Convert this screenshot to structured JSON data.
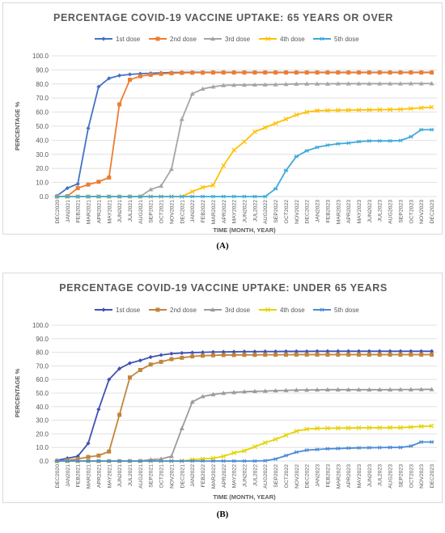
{
  "chart_data": [
    {
      "type": "line",
      "title": "PERCENTAGE COVID-19 VACCINE UPTAKE: 65 YEARS OR OVER",
      "xlabel": "TIME (MONTH, YEAR)",
      "ylabel": "PERCENTAGE %",
      "ylim": [
        0,
        100
      ],
      "y_ticks": [
        "0.0",
        "10.0",
        "20.0",
        "30.0",
        "40.0",
        "50.0",
        "60.0",
        "70.0",
        "80.0",
        "90.0",
        "100.0"
      ],
      "legend_position": "top",
      "grid": true,
      "categories": [
        "DEC2020",
        "JAN2021",
        "FEB2021",
        "MAR2021",
        "APR2021",
        "MAY2021",
        "JUN2021",
        "JUL2021",
        "AUG2021",
        "SEP2021",
        "OCT2021",
        "NOV2021",
        "DEC2021",
        "JAN2022",
        "FEB2022",
        "MAR2022",
        "APR2022",
        "MAY2022",
        "JUN2022",
        "JUL2022",
        "AUG2022",
        "SEP2022",
        "OCT2022",
        "NOV2022",
        "DEC2022",
        "JAN2023",
        "FEB2023",
        "MAR2023",
        "APR2023",
        "MAY2023",
        "JUN2023",
        "JUL2023",
        "AUG2023",
        "SEP2023",
        "OCT2023",
        "NOV2023",
        "DEC2023"
      ],
      "series": [
        {
          "name": "1st dose",
          "color": "#4472c4",
          "marker": "diamond",
          "values": [
            0.5,
            6,
            9,
            48.5,
            78,
            84,
            86,
            86.8,
            87.3,
            87.6,
            87.9,
            88.1,
            88.2,
            88.3,
            88.3,
            88.3,
            88.3,
            88.3,
            88.3,
            88.3,
            88.3,
            88.3,
            88.3,
            88.3,
            88.3,
            88.3,
            88.3,
            88.3,
            88.3,
            88.3,
            88.3,
            88.3,
            88.3,
            88.3,
            88.3,
            88.3,
            88.3
          ]
        },
        {
          "name": "2nd dose",
          "color": "#ed7d31",
          "marker": "square",
          "values": [
            0,
            0.3,
            6,
            8.5,
            10.5,
            13.5,
            65.5,
            83,
            85.5,
            86.5,
            87.2,
            87.6,
            87.9,
            88,
            88,
            88.1,
            88.1,
            88.1,
            88.1,
            88.1,
            88.1,
            88.1,
            88.1,
            88.1,
            88.1,
            88.1,
            88.1,
            88.1,
            88.1,
            88.1,
            88.1,
            88.1,
            88.1,
            88.1,
            88.1,
            88.1,
            88.1
          ]
        },
        {
          "name": "3rd dose",
          "color": "#a5a5a5",
          "marker": "triangle",
          "values": [
            0,
            0,
            0,
            0,
            0,
            0,
            0,
            0,
            0,
            5,
            7.5,
            19.5,
            55,
            73,
            76.5,
            78,
            79,
            79.2,
            79.3,
            79.4,
            79.5,
            79.6,
            79.8,
            80,
            80.1,
            80.1,
            80.1,
            80.2,
            80.2,
            80.2,
            80.2,
            80.2,
            80.2,
            80.2,
            80.3,
            80.3,
            80.3
          ]
        },
        {
          "name": "4th dose",
          "color": "#ffc000",
          "marker": "x",
          "values": [
            0,
            0,
            0,
            0,
            0,
            0,
            0,
            0,
            0,
            0,
            0,
            0,
            0,
            3.5,
            6.5,
            8,
            22,
            33,
            39,
            46,
            49,
            52,
            55,
            58,
            60,
            61,
            61.2,
            61.3,
            61.4,
            61.5,
            61.6,
            61.7,
            61.8,
            62,
            62.5,
            63,
            63.5
          ]
        },
        {
          "name": "5th dose",
          "color": "#3fa9d9",
          "marker": "star",
          "values": [
            0,
            0,
            0,
            0,
            0,
            0,
            0,
            0,
            0,
            0,
            0,
            0,
            0,
            0,
            0,
            0,
            0,
            0,
            0,
            0,
            0,
            5.5,
            18.5,
            28.5,
            32.5,
            35,
            36.5,
            37.5,
            38,
            39,
            39.5,
            39.5,
            39.5,
            39.8,
            42.5,
            47.5,
            47.5
          ]
        }
      ]
    },
    {
      "type": "line",
      "title": "PERCENTAGE COVID-19 VACCINE UPTAKE: UNDER 65 YEARS",
      "xlabel": "TIME (MONTH, YEAR)",
      "ylabel": "PERCENTAGE %",
      "ylim": [
        0,
        100
      ],
      "y_ticks": [
        "0.0",
        "10.0",
        "20.0",
        "30.0",
        "40.0",
        "50.0",
        "60.0",
        "70.0",
        "80.0",
        "90.0",
        "100.0"
      ],
      "legend_position": "top",
      "grid": true,
      "categories": [
        "DEC2020",
        "JAN2021",
        "FEB2021",
        "MAR2021",
        "APR2021",
        "MAY2021",
        "JUN2021",
        "JUL2021",
        "AUG2021",
        "SEP2021",
        "OCT2021",
        "NOV2021",
        "DEC2021",
        "JAN2022",
        "FEB2022",
        "MAR2022",
        "APR2022",
        "MAY2022",
        "JUN2022",
        "JUL2022",
        "AUG2022",
        "SEP2022",
        "OCT2022",
        "NOV2022",
        "DEC2022",
        "JAN2023",
        "FEB2023",
        "MAR2023",
        "APR2023",
        "MAY2023",
        "JUN2023",
        "JUL2023",
        "AUG2023",
        "SEP2023",
        "OCT2023",
        "NOV2023",
        "DEC2023"
      ],
      "series": [
        {
          "name": "1st dose",
          "color": "#4052b5",
          "marker": "diamond",
          "values": [
            0.5,
            2,
            3.5,
            13,
            38,
            60,
            68,
            72,
            74,
            76.5,
            78,
            79,
            79.5,
            79.8,
            80,
            80.2,
            80.3,
            80.4,
            80.5,
            80.5,
            80.6,
            80.6,
            80.7,
            80.7,
            80.7,
            80.8,
            80.8,
            80.8,
            80.8,
            80.8,
            80.8,
            80.8,
            80.8,
            80.8,
            80.8,
            80.8,
            80.8
          ]
        },
        {
          "name": "2nd dose",
          "color": "#c0863a",
          "marker": "square",
          "values": [
            0,
            0.5,
            1.5,
            3,
            4,
            7,
            34,
            61.5,
            67,
            71,
            73,
            75,
            76,
            77,
            77.5,
            77.8,
            78,
            78,
            78.1,
            78.1,
            78.2,
            78.2,
            78.2,
            78.3,
            78.3,
            78.3,
            78.3,
            78.3,
            78.3,
            78.3,
            78.3,
            78.3,
            78.3,
            78.3,
            78.3,
            78.3,
            78.3
          ]
        },
        {
          "name": "3rd dose",
          "color": "#9b9b9b",
          "marker": "triangle",
          "values": [
            0,
            0,
            0,
            0,
            0,
            0,
            0,
            0,
            0,
            1,
            1.5,
            3.5,
            24,
            43.5,
            47.5,
            49,
            50,
            50.5,
            51,
            51.3,
            51.5,
            51.8,
            52,
            52.2,
            52.3,
            52.4,
            52.5,
            52.5,
            52.5,
            52.5,
            52.5,
            52.5,
            52.5,
            52.6,
            52.6,
            52.7,
            52.7
          ]
        },
        {
          "name": "4th dose",
          "color": "#e6d200",
          "marker": "x",
          "values": [
            0,
            0,
            0,
            0,
            0,
            0,
            0,
            0,
            0,
            0,
            0,
            0,
            0,
            1,
            1.5,
            2,
            3.5,
            6,
            7.5,
            10.5,
            13.5,
            16,
            19,
            22,
            23.5,
            24,
            24.1,
            24.2,
            24.3,
            24.4,
            24.5,
            24.5,
            24.6,
            24.6,
            25,
            25.5,
            25.8
          ]
        },
        {
          "name": "5th dose",
          "color": "#4a8bd6",
          "marker": "star",
          "values": [
            0,
            0,
            0,
            0,
            0,
            0,
            0,
            0,
            0,
            0,
            0,
            0,
            0,
            0,
            0,
            0,
            0,
            0,
            0,
            0,
            0.2,
            1.5,
            4,
            6.5,
            8,
            8.5,
            9,
            9.2,
            9.5,
            9.7,
            9.8,
            9.9,
            10,
            10,
            11,
            14,
            14
          ]
        }
      ]
    }
  ],
  "captions": [
    "(A)",
    "(B)"
  ],
  "style": {
    "title_color": "#595959",
    "axis_text_color": "#595959",
    "grid_color": "#d9d9d9"
  }
}
